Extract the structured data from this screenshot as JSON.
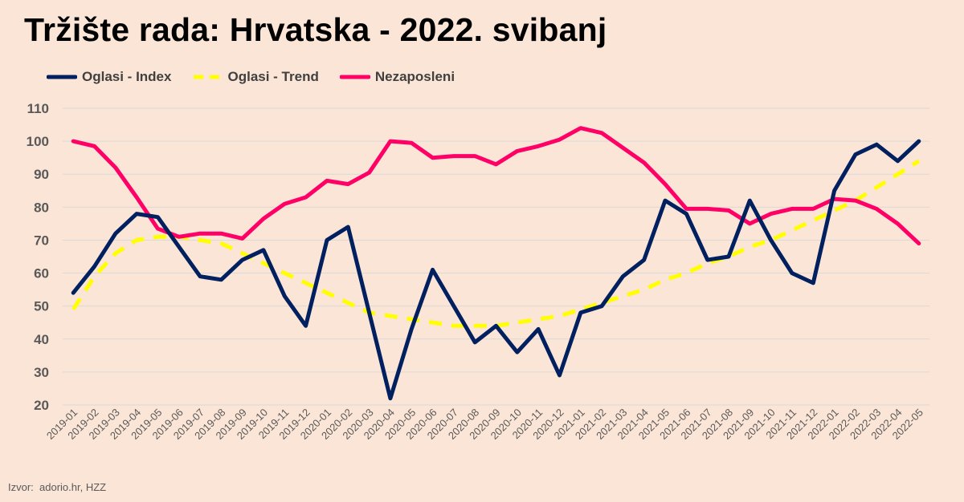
{
  "page": {
    "title": "Tržište rada: Hrvatska - 2022. svibanj",
    "source": "Izvor:  adorio.hr, HZZ"
  },
  "colors": {
    "background": "#fbe5d6",
    "index": "#002060",
    "trend": "#ffff00",
    "unemployed": "#ff0066",
    "grid": "#d9d9d9"
  },
  "chart_data": {
    "type": "line",
    "title": "Tržište rada: Hrvatska - 2022. svibanj",
    "xlabel": "",
    "ylabel": "",
    "ylim": [
      20,
      110
    ],
    "yticks": [
      20,
      30,
      40,
      50,
      60,
      70,
      80,
      90,
      100,
      110
    ],
    "grid": "horizontal",
    "legend_position": "top-left",
    "categories": [
      "2019-01",
      "2019-02",
      "2019-03",
      "2019-04",
      "2019-05",
      "2019-06",
      "2019-07",
      "2019-08",
      "2019-09",
      "2019-10",
      "2019-11",
      "2019-12",
      "2020-01",
      "2020-02",
      "2020-03",
      "2020-04",
      "2020-05",
      "2020-06",
      "2020-07",
      "2020-08",
      "2020-09",
      "2020-10",
      "2020-11",
      "2020-12",
      "2021-01",
      "2021-02",
      "2021-03",
      "2021-04",
      "2021-05",
      "2021-06",
      "2021-07",
      "2021-08",
      "2021-09",
      "2021-10",
      "2021-11",
      "2021-12",
      "2022-01",
      "2022-02",
      "2022-03",
      "2022-04",
      "2022-05"
    ],
    "series": [
      {
        "name": "Oglasi - Index",
        "color": "#002060",
        "style": "solid",
        "values": [
          54,
          62,
          72,
          78,
          77,
          68,
          59,
          58,
          64,
          67,
          53,
          44,
          70,
          74,
          48,
          22,
          43,
          61,
          50,
          39,
          44,
          36,
          43,
          29,
          48,
          50,
          59,
          64,
          82,
          78,
          64,
          65,
          82,
          70,
          60,
          57,
          85,
          96,
          99,
          94,
          100
        ]
      },
      {
        "name": "Oglasi - Trend",
        "color": "#ffff00",
        "style": "dashed",
        "values": [
          49,
          59,
          66,
          70,
          71,
          71,
          70,
          69,
          66,
          63,
          60,
          57,
          54,
          51,
          48,
          47,
          46,
          45,
          44,
          44,
          44,
          45,
          46,
          47,
          49,
          51,
          53,
          55,
          58,
          60,
          63,
          65,
          68,
          70,
          73,
          76,
          79,
          82,
          86,
          90,
          94
        ]
      },
      {
        "name": "Nezaposleni",
        "color": "#ff0066",
        "style": "solid",
        "values": [
          100,
          98.5,
          92,
          83,
          73.5,
          71,
          72,
          72,
          70.5,
          76.5,
          81,
          83,
          88,
          87,
          90.5,
          100,
          99.5,
          95,
          95.5,
          95.5,
          93,
          97,
          98.5,
          100.5,
          104,
          102.5,
          98,
          93.5,
          87,
          79.5,
          79.5,
          79,
          75,
          78,
          79.5,
          79.5,
          82.5,
          82,
          79.5,
          75,
          69
        ]
      }
    ]
  }
}
